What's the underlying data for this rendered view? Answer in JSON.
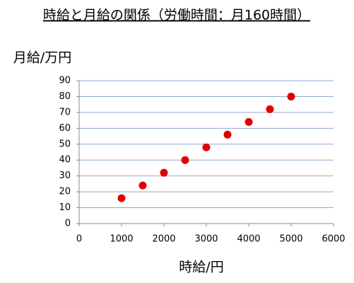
{
  "chart_data": {
    "type": "scatter",
    "title": "時給と月給の関係（労働時間：月160時間）",
    "x_label": "時給/円",
    "y_label": "月給/万円",
    "series": [
      {
        "color": "#e00000",
        "x": [
          1000,
          1500,
          2000,
          2500,
          3000,
          3500,
          4000,
          4500,
          5000
        ],
        "values": [
          16,
          24,
          32,
          40,
          48,
          56,
          64,
          72,
          80
        ]
      }
    ],
    "xlim": [
      0,
      6000
    ],
    "xticks": [
      0,
      1000,
      2000,
      3000,
      4000,
      5000,
      6000
    ],
    "ylim": [
      0,
      90
    ],
    "yticks": [
      0,
      10,
      20,
      30,
      40,
      50,
      60,
      70,
      80,
      90
    ],
    "grid": true,
    "grid_color": "#8eaacc"
  }
}
